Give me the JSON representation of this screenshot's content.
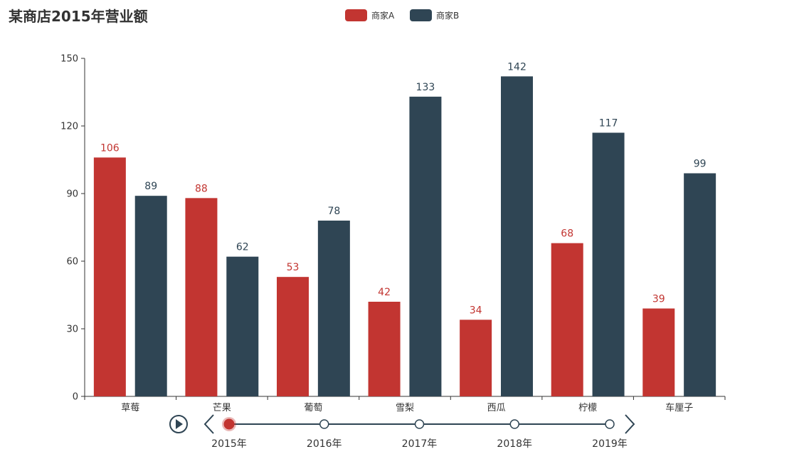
{
  "chart_data": {
    "type": "bar",
    "title": "某商店2015年营业额",
    "categories": [
      "草莓",
      "芒果",
      "葡萄",
      "雪梨",
      "西瓜",
      "柠檬",
      "车厘子"
    ],
    "series": [
      {
        "name": "商家A",
        "color": "#c23531",
        "values": [
          106,
          88,
          53,
          42,
          34,
          68,
          39
        ]
      },
      {
        "name": "商家B",
        "color": "#2f4554",
        "values": [
          89,
          62,
          78,
          133,
          142,
          117,
          99
        ]
      }
    ],
    "ylim": [
      0,
      150
    ],
    "yticks": [
      0,
      30,
      60,
      90,
      120,
      150
    ],
    "grid": false,
    "legend_position": "top-center",
    "data_labels": true
  },
  "timeline": {
    "items": [
      "2015年",
      "2016年",
      "2017年",
      "2018年",
      "2019年"
    ],
    "selected": "2015年",
    "line_color": "#2f4554",
    "active_color": "#c23531",
    "icons": {
      "play": "play-icon",
      "prev": "chevron-left-icon",
      "next": "chevron-right-icon"
    }
  }
}
